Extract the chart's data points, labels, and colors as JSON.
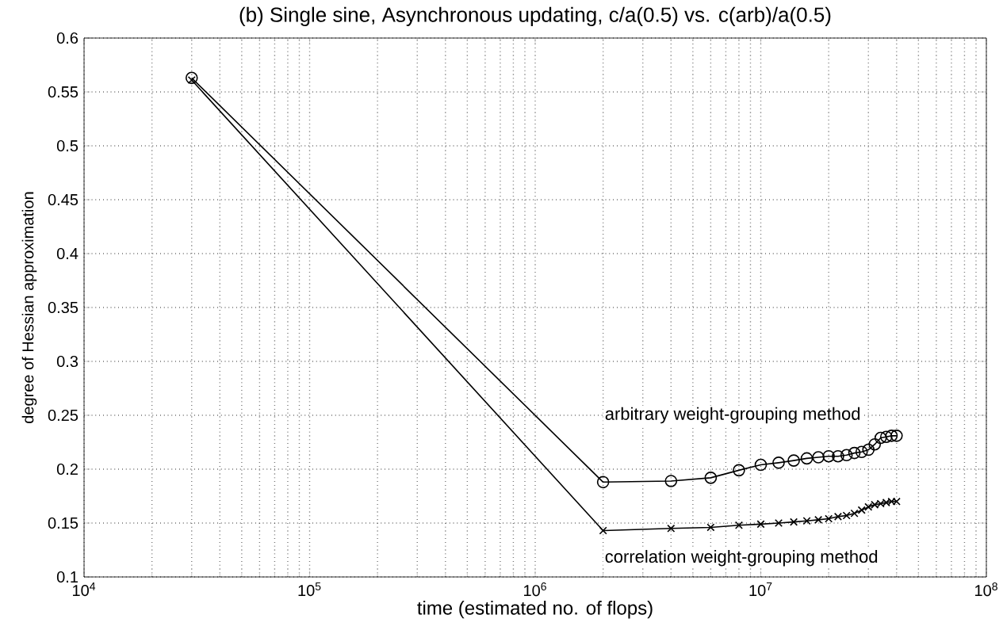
{
  "chart_data": {
    "type": "line",
    "title": "(b) Single sine, Asynchronous updating, c/a(0.5) vs. c(arb)/a(0.5)",
    "xlabel": "time (estimated no. of flops)",
    "ylabel": "degree of Hessian approximation",
    "log": "x",
    "grid": true,
    "line_style": "solid",
    "x": [
      30000,
      2000000,
      4000000,
      6000000,
      8000000,
      10000000,
      12000000,
      14000000,
      16000000,
      18000000,
      20000000,
      22000000,
      24000000,
      26000000,
      28000000,
      30000000,
      32000000,
      34000000,
      36000000,
      38000000,
      40000000
    ],
    "series": [
      {
        "color": "#000000",
        "marker": "circle",
        "values": [
          0.563,
          0.188,
          0.189,
          0.192,
          0.199,
          0.204,
          0.206,
          0.208,
          0.21,
          0.211,
          0.212,
          0.212,
          0.213,
          0.215,
          0.216,
          0.218,
          0.223,
          0.229,
          0.23,
          0.231,
          0.231
        ]
      },
      {
        "color": "#000000",
        "marker": "cross",
        "values": [
          0.561,
          0.143,
          0.145,
          0.146,
          0.148,
          0.149,
          0.15,
          0.151,
          0.152,
          0.153,
          0.154,
          0.156,
          0.157,
          0.159,
          0.162,
          0.165,
          0.167,
          0.168,
          0.169,
          0.17,
          0.17
        ]
      }
    ],
    "xlim": [
      10000,
      100000000
    ],
    "xticks": [
      {
        "value": 10000,
        "label": "10$^{4}$"
      },
      {
        "value": 100000,
        "label": "10$^{5}$"
      },
      {
        "value": 1000000,
        "label": "10$^{6}$"
      },
      {
        "value": 10000000,
        "label": "10$^{7}$"
      },
      {
        "value": 100000000,
        "label": "10$^{8}$"
      }
    ],
    "ylim": [
      0.1,
      0.6
    ],
    "yticks": [
      0.1,
      0.15,
      0.2,
      0.25,
      0.3,
      0.35,
      0.4,
      0.45,
      0.5,
      0.55,
      0.6
    ],
    "annotations": [
      "arbitrary weight-grouping method",
      "correlation weight-grouping method"
    ]
  }
}
